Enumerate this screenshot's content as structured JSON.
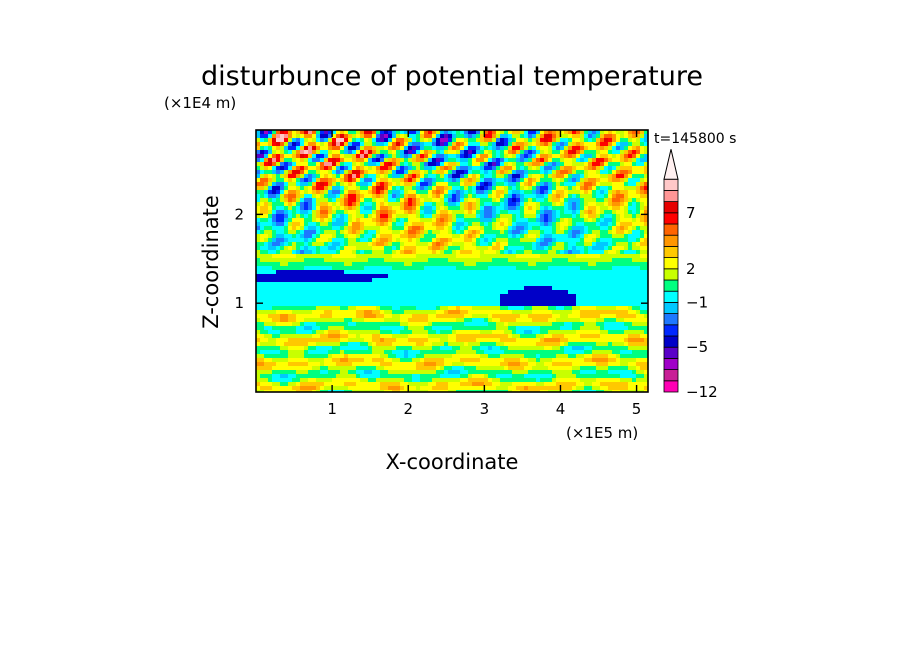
{
  "chart_data": {
    "type": "heatmap",
    "title": "disturbunce of potential temperature",
    "time_label": "t=145800 s",
    "xlabel": "X-coordinate",
    "ylabel": "Z-coordinate",
    "x_unit": "(×1E5 m)",
    "y_unit": "(×1E4 m)",
    "xlim": [
      0,
      5.15
    ],
    "ylim": [
      0,
      2.95
    ],
    "x_ticks": [
      "1",
      "2",
      "3",
      "4",
      "5"
    ],
    "x_tick_values": [
      1,
      2,
      3,
      4,
      5
    ],
    "y_ticks": [
      "1",
      "2"
    ],
    "y_tick_values": [
      1,
      2
    ],
    "colorbar": {
      "tick_labels": [
        "7",
        "2",
        "−1",
        "−5",
        "−12"
      ],
      "tick_values": [
        7,
        2,
        -1,
        -5,
        -12
      ],
      "levels": [
        -12,
        -10,
        -8,
        -6,
        -5,
        -4,
        -3,
        -2,
        -1,
        0,
        1,
        2,
        3,
        4,
        5,
        6,
        7,
        8,
        9
      ],
      "colors": [
        "#ff00b4",
        "#c81e96",
        "#a000c8",
        "#5a00c8",
        "#0000c8",
        "#0028ff",
        "#1e78ff",
        "#00c8ff",
        "#00ffff",
        "#00ff80",
        "#c8ff00",
        "#ffff00",
        "#ffc800",
        "#ff9600",
        "#ff6400",
        "#ff0000",
        "#e60000",
        "#ff9696",
        "#ffc8c8"
      ],
      "extend": "max"
    },
    "field_description_bands": [
      {
        "z_range": [
          0,
          0.9
        ],
        "dominant": "yellow/green stripes"
      },
      {
        "z_range": [
          0.9,
          1.5
        ],
        "dominant": "cyan",
        "note": "blue patch near x 3.3-4.5"
      },
      {
        "z_range": [
          1.5,
          2.95
        ],
        "dominant": "oscillating red/blue wave pattern"
      }
    ]
  }
}
